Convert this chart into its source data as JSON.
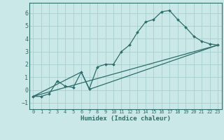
{
  "xlabel": "Humidex (Indice chaleur)",
  "bg_color": "#cbe8e8",
  "line_color": "#2d6e6a",
  "grid_color": "#a8cece",
  "xlim": [
    -0.5,
    23.5
  ],
  "ylim": [
    -1.5,
    6.8
  ],
  "yticks": [
    -1,
    0,
    1,
    2,
    3,
    4,
    5,
    6
  ],
  "xticks": [
    0,
    1,
    2,
    3,
    4,
    5,
    6,
    7,
    8,
    9,
    10,
    11,
    12,
    13,
    14,
    15,
    16,
    17,
    18,
    19,
    20,
    21,
    22,
    23
  ],
  "series1_x": [
    0,
    1,
    2,
    3,
    4,
    5,
    6,
    7,
    8,
    9,
    10,
    11,
    12,
    13,
    14,
    15,
    16,
    17,
    18,
    19,
    20,
    21,
    22,
    23
  ],
  "series1_y": [
    -0.5,
    -0.5,
    -0.3,
    0.7,
    0.3,
    0.2,
    1.4,
    0.1,
    1.8,
    2.0,
    2.0,
    3.0,
    3.5,
    4.5,
    5.3,
    5.5,
    6.1,
    6.2,
    5.5,
    4.9,
    4.2,
    3.8,
    3.6,
    3.5
  ],
  "series2_x": [
    0,
    23
  ],
  "series2_y": [
    -0.5,
    3.5
  ],
  "series3_x": [
    0,
    6,
    7,
    23
  ],
  "series3_y": [
    -0.5,
    1.4,
    0.05,
    3.5
  ]
}
